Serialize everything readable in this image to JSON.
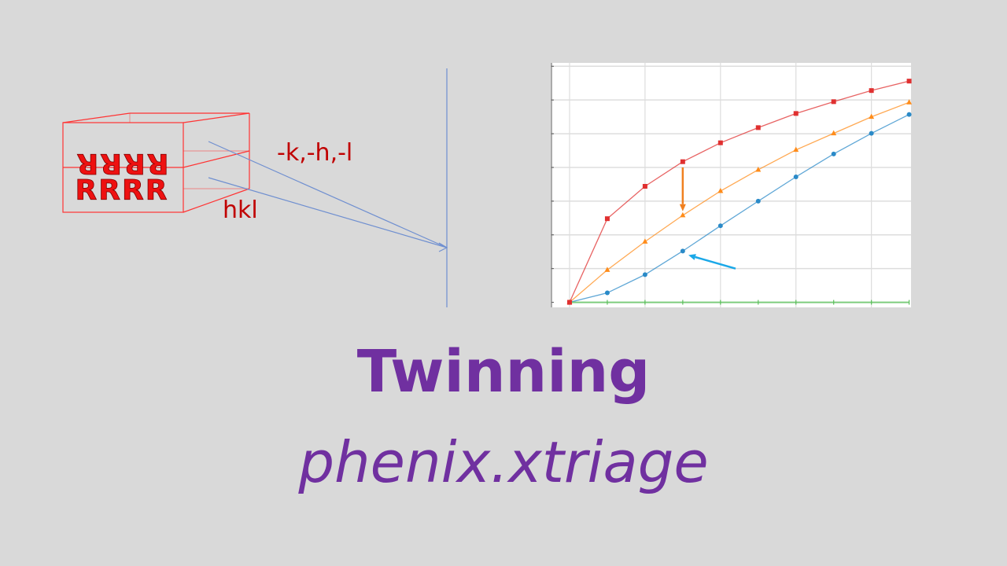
{
  "slide": {
    "title": "Twinning",
    "subtitle": "phenix.xtriage"
  },
  "diagram": {
    "twin_domain_letters": "RRRR",
    "main_domain_letters": "RRRR",
    "twin_index_label": "-k,-h,-l",
    "main_index_label": "hkl",
    "colors": {
      "box": "#ff3333",
      "labels": "#c00000",
      "rays": "#6f8fd0"
    }
  },
  "chart_data": {
    "type": "line",
    "title": "",
    "xlabel": "",
    "ylabel": "",
    "x": [
      0,
      1,
      2,
      3,
      4,
      5,
      6,
      7,
      8,
      9
    ],
    "xlim": [
      -0.5,
      9.05
    ],
    "ylim": [
      -0.15,
      7.1
    ],
    "grid": true,
    "series": [
      {
        "color": "#e03030",
        "marker": "square",
        "values": [
          0,
          2.48,
          3.44,
          4.17,
          4.73,
          5.18,
          5.6,
          5.95,
          6.28,
          6.56
        ]
      },
      {
        "color": "#ff8c1a",
        "marker": "triangle",
        "values": [
          0,
          0.96,
          1.8,
          2.58,
          3.3,
          3.93,
          4.52,
          5.01,
          5.5,
          5.93
        ]
      },
      {
        "color": "#2a8ac8",
        "marker": "circle",
        "values": [
          0,
          0.28,
          0.82,
          1.52,
          2.27,
          3.0,
          3.72,
          4.4,
          5.01,
          5.57
        ]
      },
      {
        "color": "#5cbf5c",
        "marker": "tick",
        "values": [
          0,
          0,
          0,
          0,
          0,
          0,
          0,
          0,
          0,
          0
        ]
      }
    ],
    "annotations": [
      {
        "type": "arrow",
        "color": "#f08020",
        "from": [
          3,
          4.0
        ],
        "to": [
          3,
          2.7
        ]
      },
      {
        "type": "arrow",
        "color": "#1aa8e8",
        "from": [
          4.4,
          1.0
        ],
        "to": [
          3.15,
          1.4
        ]
      }
    ]
  }
}
